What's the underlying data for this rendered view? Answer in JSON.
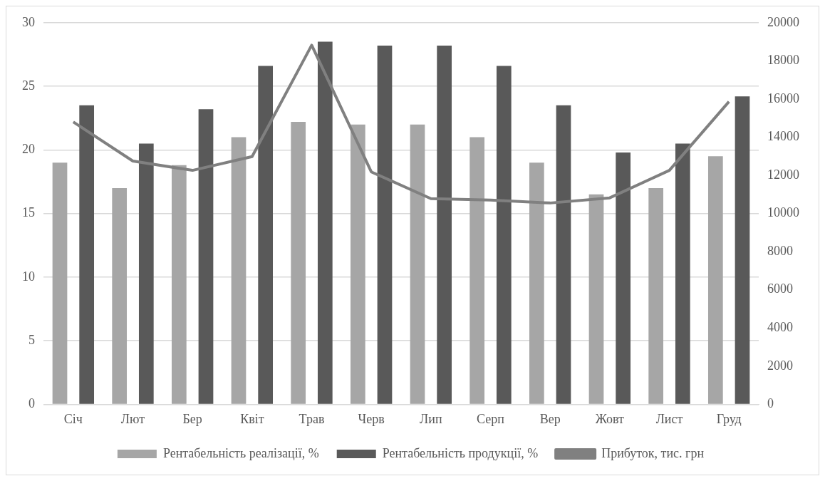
{
  "chart_data": {
    "type": "bar",
    "categories": [
      "Січ",
      "Лют",
      "Бер",
      "Квіт",
      "Трав",
      "Черв",
      "Лип",
      "Серп",
      "Вер",
      "Жовт",
      "Лист",
      "Груд"
    ],
    "series": [
      {
        "name": "Рентабельність реалізації, %",
        "color": "#a6a6a6",
        "values": [
          19,
          17,
          18.8,
          21,
          22.2,
          22,
          22,
          21,
          19,
          16.5,
          17,
          19.5
        ]
      },
      {
        "name": "Рентабельність продукції, %",
        "color": "#595959",
        "values": [
          23.5,
          20.5,
          23.2,
          26.6,
          28.5,
          28.2,
          28.2,
          26.6,
          23.5,
          19.8,
          20.5,
          24.2
        ]
      },
      {
        "name": "Прибуток, тис. грн",
        "type": "line",
        "axis": "y2",
        "color": "#808080",
        "values": [
          14800,
          12750,
          12260,
          12980,
          18820,
          12180,
          10780,
          10700,
          10550,
          10820,
          12260,
          15860
        ]
      }
    ],
    "ylim": [
      0,
      30
    ],
    "yticks": [
      0,
      5,
      10,
      15,
      20,
      25,
      30
    ],
    "y2lim": [
      0,
      20000
    ],
    "y2ticks": [
      0,
      2000,
      4000,
      6000,
      8000,
      10000,
      12000,
      14000,
      16000,
      18000,
      20000
    ],
    "grid": "y",
    "legend": "bottom",
    "marker": "none"
  }
}
